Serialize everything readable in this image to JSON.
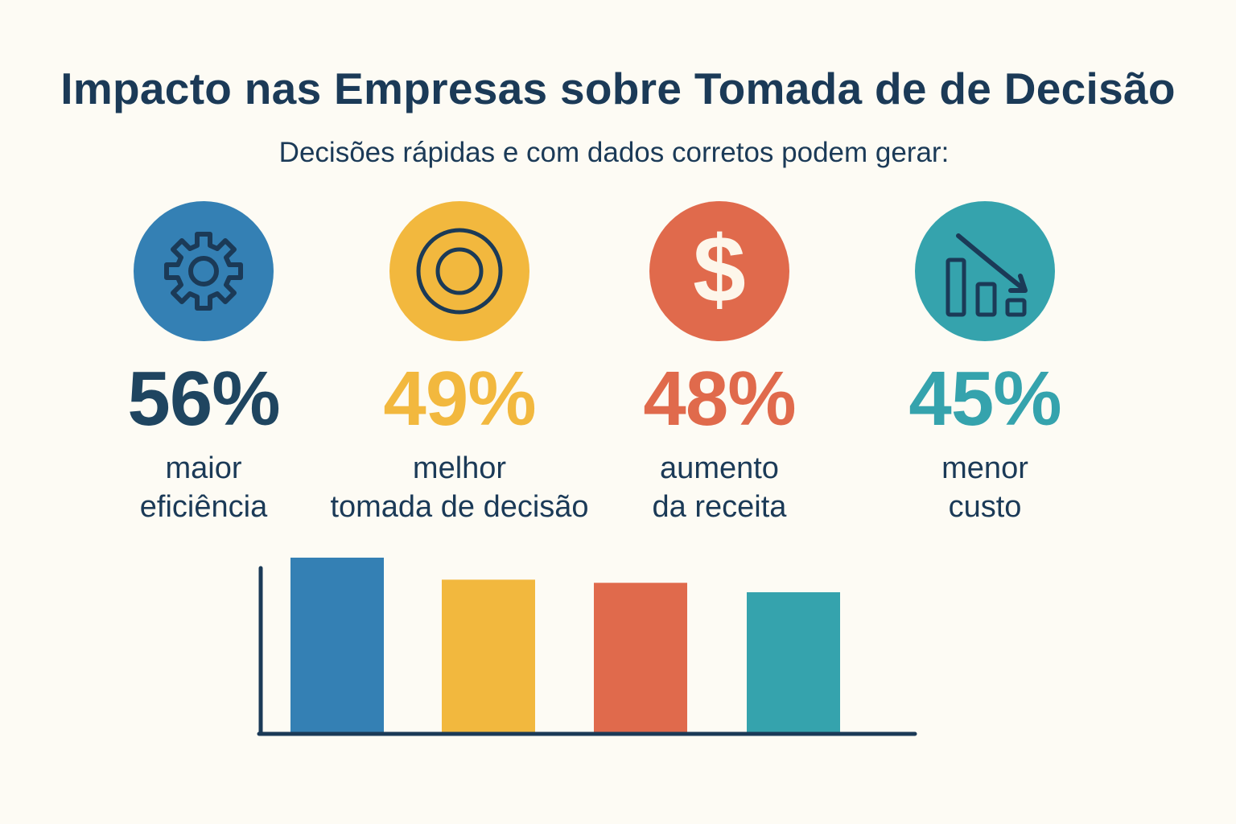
{
  "header": {
    "title": "Impacto nas Empresas sobre Tomada de de Decisão",
    "subtitle": "Decisões rápidas e com dados corretos podem gerar:"
  },
  "stats": [
    {
      "icon": "gear-icon",
      "value": "56%",
      "label_line1": "maior",
      "label_line2": "eficiência",
      "color": "#3480b4",
      "value_color": "#1f4560"
    },
    {
      "icon": "target-icon",
      "value": "49%",
      "label_line1": "melhor",
      "label_line2": "tomada de decisão",
      "color": "#f2b83e",
      "value_color": "#f2b83e"
    },
    {
      "icon": "dollar-icon",
      "value": "48%",
      "label_line1": "aumento",
      "label_line2": "da receita",
      "color": "#e06a4c",
      "value_color": "#e06a4c"
    },
    {
      "icon": "chart-down-icon",
      "value": "45%",
      "label_line1": "menor",
      "label_line2": "custo",
      "color": "#35a3ad",
      "value_color": "#35a3ad"
    }
  ],
  "chart_data": {
    "type": "bar",
    "title": "",
    "xlabel": "",
    "ylabel": "",
    "categories": [
      "maior eficiência",
      "melhor tomada de decisão",
      "aumento da receita",
      "menor custo"
    ],
    "values": [
      56,
      49,
      48,
      45
    ],
    "colors": [
      "#3480b4",
      "#f2b83e",
      "#e06a4c",
      "#35a3ad"
    ],
    "ylim": [
      0,
      60
    ],
    "grid": false,
    "legend": "none",
    "axis_color": "#1b3a57"
  }
}
